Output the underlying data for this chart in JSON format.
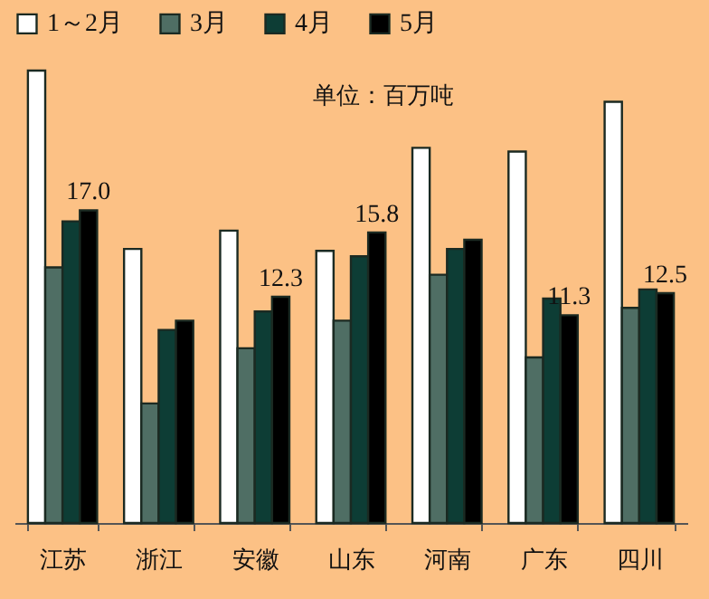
{
  "chart_data": {
    "type": "bar",
    "categories": [
      "江苏",
      "浙江",
      "安徽",
      "山东",
      "河南",
      "广东",
      "四川"
    ],
    "series": [
      {
        "name": "1～2月",
        "color": "#ffffff",
        "values": [
          24.6,
          14.9,
          15.9,
          14.8,
          20.4,
          20.2,
          22.9
        ]
      },
      {
        "name": "3月",
        "color": "#4f6e64",
        "values": [
          13.9,
          6.5,
          9.5,
          11.0,
          13.5,
          9.0,
          11.7
        ]
      },
      {
        "name": "4月",
        "color": "#0d3d35",
        "values": [
          16.4,
          10.5,
          11.5,
          14.5,
          14.9,
          12.2,
          12.7
        ]
      },
      {
        "name": "5月",
        "color": "#000000",
        "values": [
          17.0,
          11.0,
          12.3,
          15.8,
          15.4,
          11.3,
          12.5
        ],
        "value_labels": [
          "17.0",
          null,
          "12.3",
          "15.8",
          null,
          "11.3",
          "12.5"
        ]
      }
    ],
    "tick_labels": "x",
    "legend": "top",
    "annotations": [
      "单位：百万吨"
    ]
  }
}
